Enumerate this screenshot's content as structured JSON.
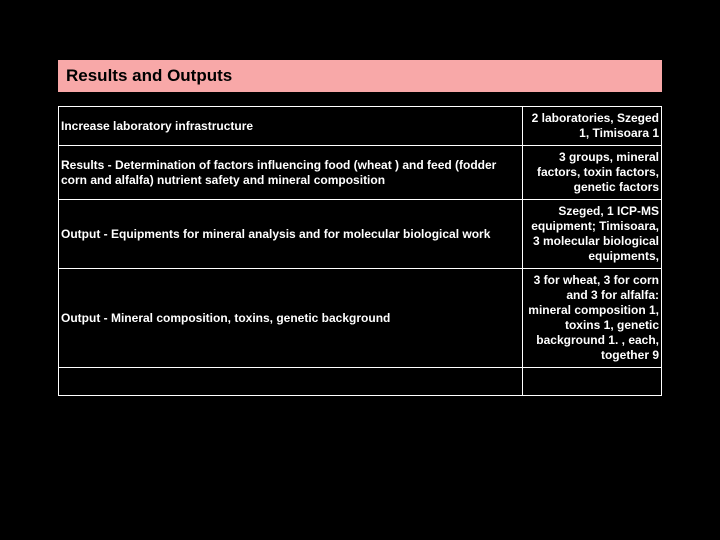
{
  "header": {
    "title": "Results and Outputs"
  },
  "table": {
    "columns": [
      "description",
      "value"
    ],
    "col_widths": [
      "77%",
      "23%"
    ],
    "border_color": "#ffffff",
    "background_color": "#000000",
    "text_color": "#ffffff",
    "header_bg": "#f8a8a8",
    "font_size": 12,
    "rows": [
      {
        "left": "Increase laboratory infrastructure",
        "right": "2 laboratories, Szeged 1, Timisoara 1"
      },
      {
        "left": "Results - Determination of factors influencing food (wheat ) and feed (fodder corn and alfalfa) nutrient safety and mineral composition",
        "right": "3 groups, mineral factors, toxin factors, genetic factors"
      },
      {
        "left": "Output - Equipments for mineral analysis and for molecular biological work",
        "right": "Szeged, 1 ICP-MS equipment; Timisoara, 3 molecular biological equipments,"
      },
      {
        "left": "Output - Mineral composition, toxins, genetic background",
        "right": "3 for wheat, 3 for corn  and 3 for alfalfa: mineral composition 1, toxins 1, genetic background 1. , each, together 9"
      },
      {
        "left": "",
        "right": ""
      }
    ]
  }
}
